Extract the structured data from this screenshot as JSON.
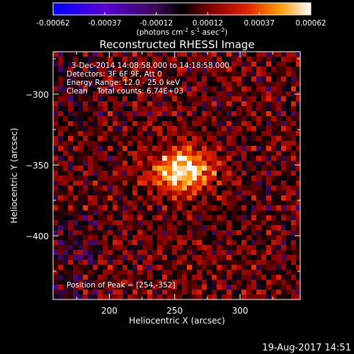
{
  "chart_data": {
    "type": "heatmap",
    "title": "Reconstructed RHESSI Image",
    "xlabel": "Heliocentric X (arcsec)",
    "ylabel": "Heliocentric Y (arcsec)",
    "xlim": [
      157,
      346
    ],
    "ylim": [
      -445,
      -270
    ],
    "xticks": [
      200,
      250,
      300
    ],
    "yticks": [
      -300,
      -350,
      -400
    ],
    "colorbar": {
      "min": -0.00062,
      "max": 0.00062,
      "ticks": [
        "-0.00062",
        "-0.00037",
        "-0.00012",
        "0.00012",
        "0.00037",
        "0.00062"
      ],
      "unit_label": "(photons cm",
      "unit_sup1": "-2",
      "unit_mid1": " s",
      "unit_sup2": "-1",
      "unit_mid2": " asec",
      "unit_sup3": "-2",
      "unit_end": ")"
    },
    "info_lines": [
      "3-Dec-2014 14:08:58.000 to 14:18:58.000",
      "Detectors: 3F 6F 9F, Att 0",
      "Energy Range: 12.0 - 25.0 keV",
      "Clean    Total counts: 6.74E+03"
    ],
    "peak_label": "Position of Peak = [254,-352]",
    "peak": [
      254,
      -352
    ]
  },
  "footer": {
    "timestamp": "19-Aug-2017 14:51"
  }
}
